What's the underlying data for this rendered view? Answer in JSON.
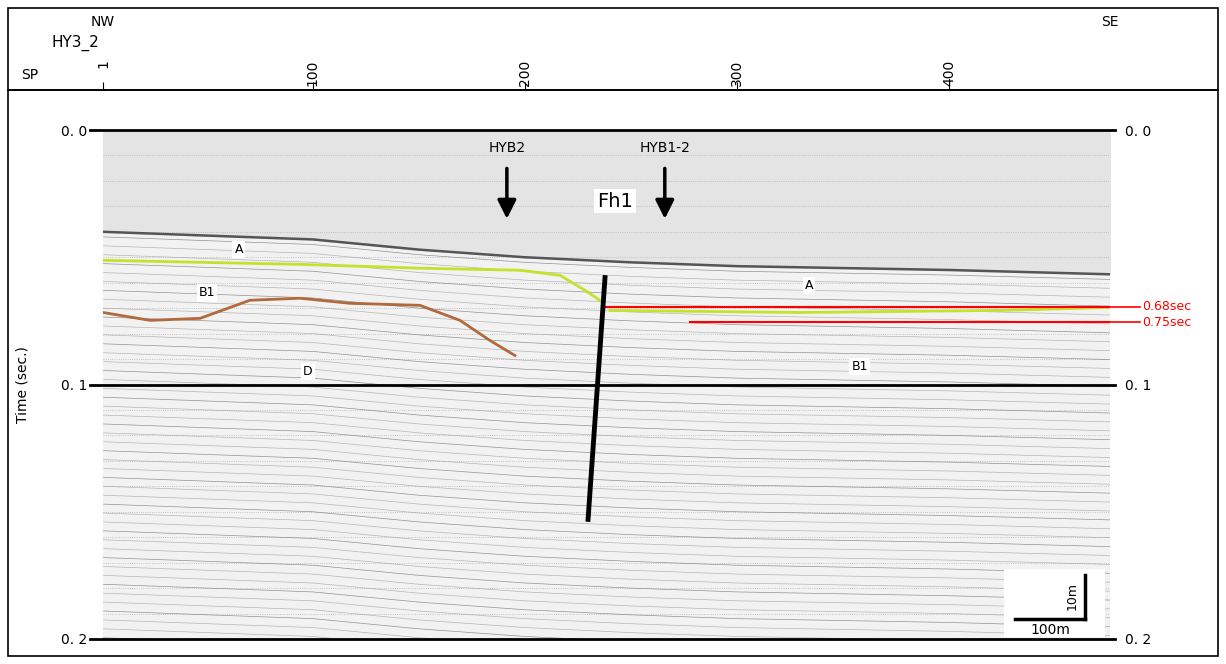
{
  "chart_data": {
    "type": "seismic_section",
    "title": "HY3_2",
    "x_label": "SP",
    "y_label": "Time (sec.)",
    "direction_left": "NW",
    "direction_right": "SE",
    "xlim": [
      1,
      476
    ],
    "xticks": [
      1,
      100,
      200,
      300,
      400
    ],
    "ylim": [
      0.0,
      0.2
    ],
    "yticks": [
      {
        "value": 0.0,
        "label": "0. 0"
      },
      {
        "value": 0.1,
        "label": "0. 1"
      },
      {
        "value": 0.2,
        "label": "0. 2"
      }
    ],
    "grid": true,
    "seafloor": {
      "x": [
        1,
        100,
        150,
        200,
        250,
        300,
        400,
        476
      ],
      "y": [
        0.04,
        0.043,
        0.047,
        0.05,
        0.052,
        0.0535,
        0.055,
        0.0567
      ],
      "color": "#555555"
    },
    "horizons": [
      {
        "color": "#c4e22c",
        "x": [
          1,
          93.9,
          150.5,
          197.7,
          216.6,
          228.4,
          235.4
        ],
        "y": [
          0.0512,
          0.0528,
          0.0543,
          0.0551,
          0.0571,
          0.063,
          0.0669
        ]
      },
      {
        "color": "#c4e22c",
        "x": [
          240,
          329.8,
          424,
          476
        ],
        "y": [
          0.0709,
          0.0717,
          0.0709,
          0.0697
        ]
      },
      {
        "color": "#b06a3b",
        "x": [
          1,
          23.2,
          46.8,
          70.3,
          93.9,
          117.5,
          150.5,
          169.4,
          183.5,
          195.3
        ],
        "y": [
          0.0717,
          0.0748,
          0.074,
          0.0669,
          0.0661,
          0.0681,
          0.0689,
          0.0748,
          0.0827,
          0.0886
        ]
      }
    ],
    "fault": {
      "name": "Fh1",
      "x": [
        237.8,
        229.8
      ],
      "y": [
        0.058,
        0.153
      ],
      "color": "#000000",
      "label_x": 242.5,
      "label_y": 0.028
    },
    "boreholes": [
      {
        "label": "HYB2",
        "x": 191.5
      },
      {
        "label": "HYB1-2",
        "x": 266
      }
    ],
    "unit_labels": [
      {
        "text": "A",
        "x": 65,
        "y": 0.047
      },
      {
        "text": "A",
        "x": 334,
        "y": 0.061
      },
      {
        "text": "B1",
        "x": 50,
        "y": 0.064
      },
      {
        "text": "D",
        "x": 97.7,
        "y": 0.095
      },
      {
        "text": "B1",
        "x": 358,
        "y": 0.093
      }
    ],
    "time_markers": [
      {
        "label": "0.68sec",
        "x_start": 237.8,
        "y": 0.0695,
        "color": "#ff0000"
      },
      {
        "label": "0.75sec",
        "x_start": 278,
        "y": 0.0756,
        "color": "#ff0000"
      }
    ],
    "scale_bar": {
      "vertical": "10m",
      "horizontal": "100m"
    }
  }
}
